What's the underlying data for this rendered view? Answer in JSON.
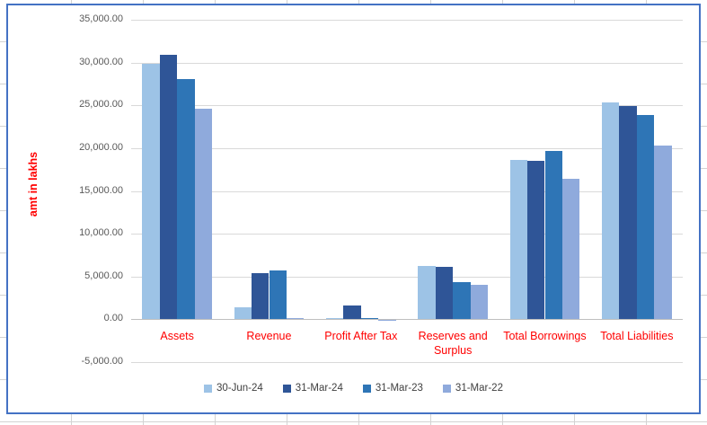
{
  "chart_data": {
    "type": "bar",
    "title": "",
    "xlabel": "",
    "ylabel": "amt in lakhs",
    "categories": [
      "Assets",
      "Revenue",
      "Profit After Tax",
      "Reserves and Surplus",
      "Total Borrowings",
      "Total Liabilities"
    ],
    "series": [
      {
        "name": "30-Jun-24",
        "color": "#9DC3E6",
        "values": [
          29900,
          1450,
          200,
          6250,
          18600,
          25300
        ]
      },
      {
        "name": "31-Mar-24",
        "color": "#2F5597",
        "values": [
          30900,
          5400,
          1650,
          6100,
          18550,
          24900
        ]
      },
      {
        "name": "31-Mar-23",
        "color": "#2E75B6",
        "values": [
          28100,
          5750,
          100,
          4400,
          19700,
          23850
        ]
      },
      {
        "name": "31-Mar-22",
        "color": "#8FAADC",
        "values": [
          24600,
          150,
          -150,
          4050,
          16450,
          20300
        ]
      }
    ],
    "y_axis": {
      "min": -5000,
      "max": 35000,
      "step": 5000,
      "tick_labels": [
        "35,000.00",
        "30,000.00",
        "25,000.00",
        "20,000.00",
        "15,000.00",
        "10,000.00",
        "5,000.00",
        "0.00",
        "-5,000.00"
      ]
    },
    "legend": {
      "position": "bottom",
      "entries": [
        "30-Jun-24",
        "31-Mar-24",
        "31-Mar-23",
        "31-Mar-22"
      ]
    },
    "grid": true,
    "styles": {
      "category_label_color": "#FF0000",
      "axis_title_color": "#FF0000",
      "tick_label_color": "#595959",
      "legend_text_color": "#404040",
      "gridline_color": "#D9D9D9",
      "zero_line_color": "#BFBFBF",
      "chart_border_color": "#4472C4"
    }
  }
}
